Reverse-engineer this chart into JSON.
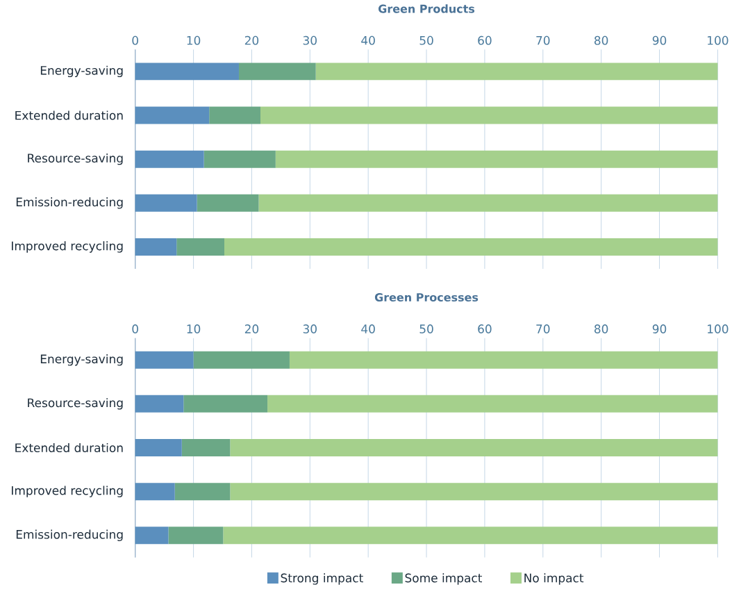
{
  "chart_data": [
    {
      "type": "bar",
      "orientation": "horizontal",
      "stacked": true,
      "title": "Green Products",
      "categories": [
        "Energy-saving",
        "Extended duration",
        "Resource-saving",
        "Emission-reducing",
        "Improved recycling"
      ],
      "series": [
        {
          "color": "#5b8fbe",
          "values": [
            17.8,
            12.7,
            11.8,
            10.6,
            7.1
          ]
        },
        {
          "color": "#6ba886",
          "values": [
            13.2,
            8.8,
            12.3,
            10.6,
            8.2
          ]
        },
        {
          "color": "#a5d08c",
          "values": [
            69.0,
            78.5,
            75.9,
            78.8,
            84.7
          ]
        }
      ],
      "xlim": [
        0,
        100
      ],
      "xticks": [
        0,
        10,
        20,
        30,
        40,
        50,
        60,
        70,
        80,
        90,
        100
      ],
      "grid": "x",
      "legend": false
    },
    {
      "type": "bar",
      "orientation": "horizontal",
      "stacked": true,
      "title": "Green Processes",
      "categories": [
        "Energy-saving",
        "Resource-saving",
        "Extended duration",
        "Improved recycling",
        "Emission-reducing"
      ],
      "series": [
        {
          "name": "Strong impact",
          "color": "#5b8fbe",
          "values": [
            10.0,
            8.3,
            8.0,
            6.8,
            5.7
          ]
        },
        {
          "name": "Some impact",
          "color": "#6ba886",
          "values": [
            16.5,
            14.4,
            8.3,
            9.5,
            9.4
          ]
        },
        {
          "name": "No impact",
          "color": "#a5d08c",
          "values": [
            73.5,
            77.3,
            83.7,
            83.7,
            84.9
          ]
        }
      ],
      "xlim": [
        0,
        100
      ],
      "xticks": [
        0,
        10,
        20,
        30,
        40,
        50,
        60,
        70,
        80,
        90,
        100
      ],
      "grid": "x",
      "legend": "bottom"
    }
  ]
}
